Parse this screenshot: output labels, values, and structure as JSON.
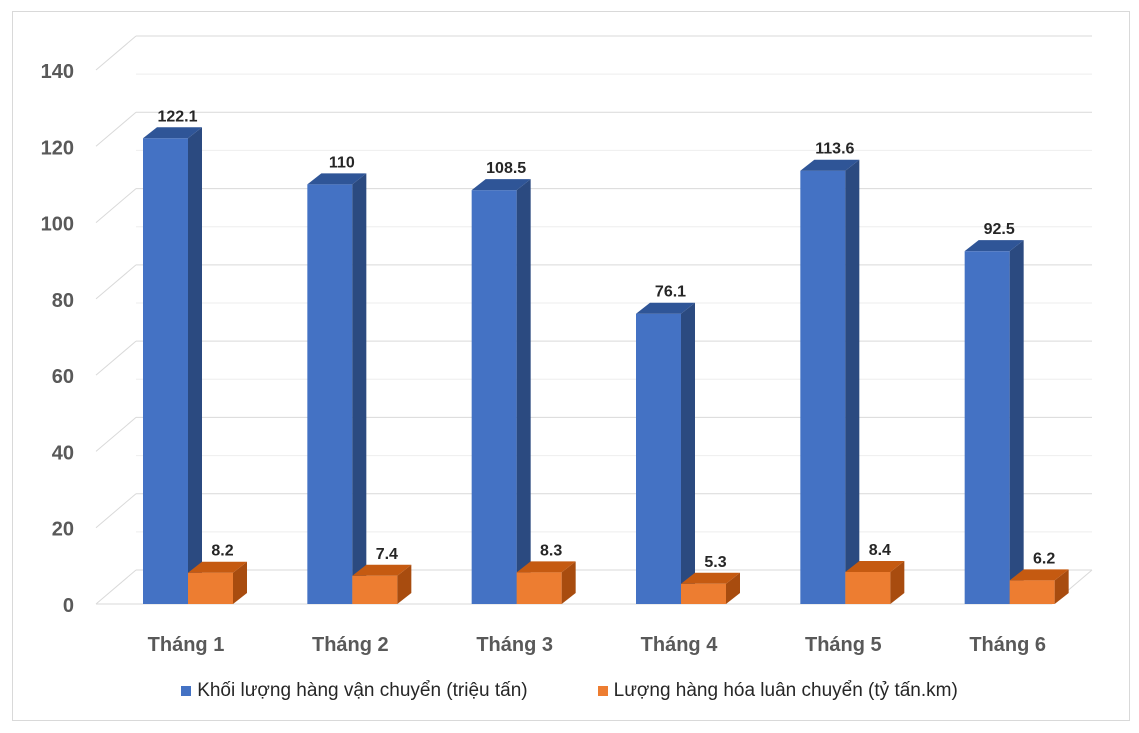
{
  "chart_data": {
    "type": "bar",
    "categories": [
      "Tháng 1",
      "Tháng 2",
      "Tháng 3",
      "Tháng 4",
      "Tháng 5",
      "Tháng 6"
    ],
    "series": [
      {
        "name": "Khối lượng hàng vận chuyển (triệu tấn)",
        "values": [
          122.1,
          110,
          108.5,
          76.1,
          113.6,
          92.5
        ],
        "color": "#4472C4"
      },
      {
        "name": "Lượng hàng hóa luân chuyển (tỷ tấn.km)",
        "values": [
          8.2,
          7.4,
          8.3,
          5.3,
          8.4,
          6.2
        ],
        "color": "#ED7D31"
      }
    ],
    "data_labels": [
      [
        "122.1",
        "110",
        "108.5",
        "76.1",
        "113.6",
        "92.5"
      ],
      [
        "8.2",
        "7.4",
        "8.3",
        "5.3",
        "8.4",
        "6.2"
      ]
    ],
    "y_ticks": [
      "0",
      "20",
      "40",
      "60",
      "80",
      "100",
      "120",
      "140"
    ],
    "ylim": [
      0,
      140
    ],
    "grid": true,
    "legend_position": "bottom",
    "style": "3d-column"
  }
}
